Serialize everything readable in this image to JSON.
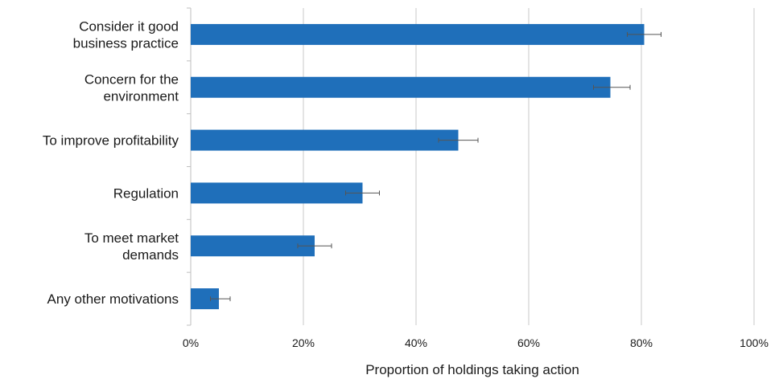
{
  "chart_data": {
    "type": "bar",
    "orientation": "horizontal",
    "categories": [
      [
        "Consider it good",
        "business practice"
      ],
      [
        "Concern for the",
        "environment"
      ],
      [
        "To improve profitability"
      ],
      [
        "Regulation"
      ],
      [
        "To meet market",
        "demands"
      ],
      [
        "Any other motivations"
      ]
    ],
    "values": [
      80.5,
      74.5,
      47.5,
      30.5,
      22.0,
      5.0
    ],
    "error_low": [
      77.5,
      71.5,
      44.0,
      27.5,
      19.0,
      3.5
    ],
    "error_high": [
      83.5,
      78.0,
      51.0,
      33.5,
      25.0,
      7.0
    ],
    "xlabel": "Proportion of holdings taking action",
    "xlim": [
      0,
      100
    ],
    "xticks": [
      0,
      20,
      40,
      60,
      80,
      100
    ],
    "xtick_labels": [
      "0%",
      "20%",
      "40%",
      "60%",
      "80%",
      "100%"
    ],
    "grid": "vertical",
    "bar_color": "#1f6fba",
    "error_bar_color": "#555555"
  }
}
